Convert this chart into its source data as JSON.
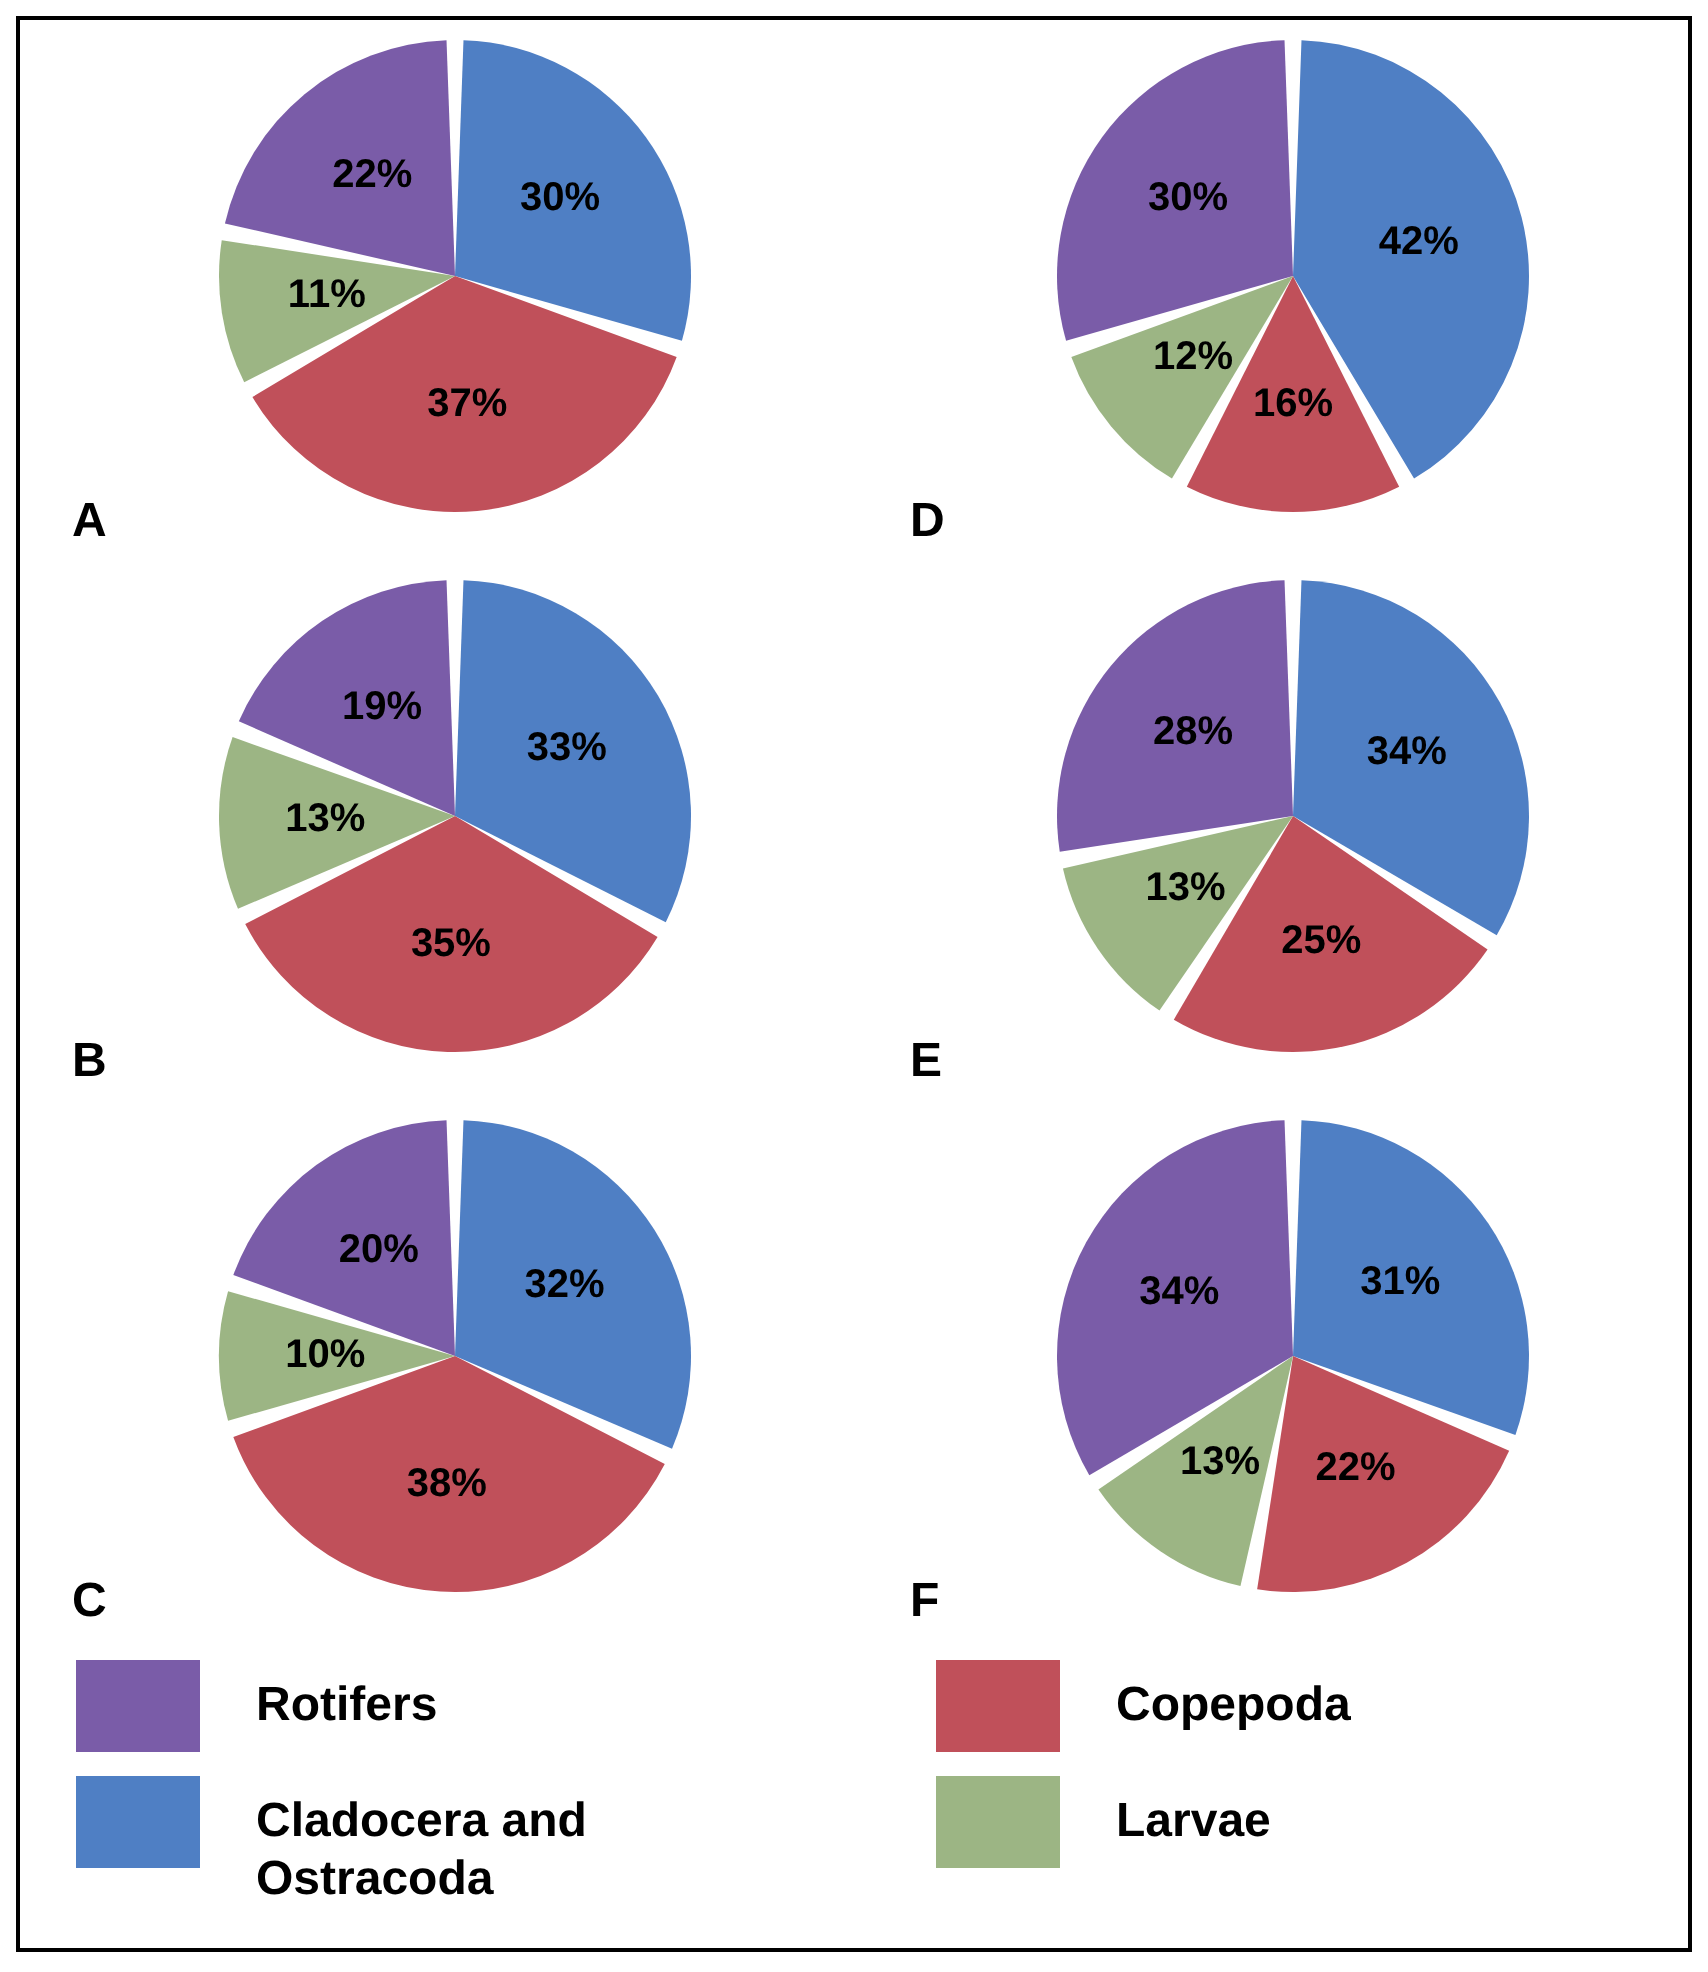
{
  "chart_data": [
    {
      "type": "pie",
      "title": "A",
      "categories": [
        "Cladocera and Ostracoda",
        "Copepoda",
        "Larvae",
        "Rotifers"
      ],
      "values": [
        30,
        37,
        11,
        22
      ],
      "value_labels": [
        "30%",
        "37%",
        "11%",
        "22%"
      ],
      "colors": [
        "#4f7fc4",
        "#c0505a",
        "#9cb584",
        "#7a5ca8"
      ],
      "legend": "bottom"
    },
    {
      "type": "pie",
      "title": "B",
      "categories": [
        null,
        null,
        null,
        null
      ],
      "values": [
        33,
        35,
        13,
        19
      ],
      "value_labels": [
        "33%",
        "35%",
        "13%",
        "19%"
      ],
      "colors": [
        "#4f7fc4",
        "#c0505a",
        "#9cb584",
        "#7a5ca8"
      ]
    },
    {
      "type": "pie",
      "title": "C",
      "categories": [
        null,
        null,
        null,
        null
      ],
      "values": [
        32,
        38,
        10,
        20
      ],
      "value_labels": [
        "32%",
        "38%",
        "10%",
        "20%"
      ],
      "colors": [
        "#4f7fc4",
        "#c0505a",
        "#9cb584",
        "#7a5ca8"
      ]
    },
    {
      "type": "pie",
      "title": "D",
      "categories": [
        null,
        null,
        null,
        null
      ],
      "values": [
        42,
        16,
        12,
        30
      ],
      "value_labels": [
        "42%",
        "16%",
        "12%",
        "30%"
      ],
      "colors": [
        "#4f7fc4",
        "#c0505a",
        "#9cb584",
        "#7a5ca8"
      ]
    },
    {
      "type": "pie",
      "title": "E",
      "categories": [
        null,
        null,
        null,
        null
      ],
      "values": [
        34,
        25,
        13,
        28
      ],
      "value_labels": [
        "34%",
        "25%",
        "13%",
        "28%"
      ],
      "colors": [
        "#4f7fc4",
        "#c0505a",
        "#9cb584",
        "#7a5ca8"
      ]
    },
    {
      "type": "pie",
      "title": "F",
      "categories": [
        null,
        null,
        null,
        null
      ],
      "values": [
        31,
        22,
        13,
        34
      ],
      "value_labels": [
        "31%",
        "22%",
        "13%",
        "34%"
      ],
      "colors": [
        "#4f7fc4",
        "#c0505a",
        "#9cb584",
        "#7a5ca8"
      ]
    }
  ]
}
